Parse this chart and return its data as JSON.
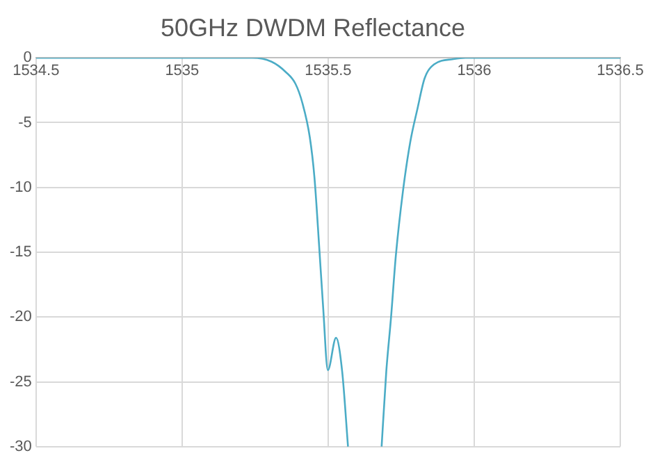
{
  "chart_data": {
    "type": "line",
    "title": "50GHz DWDM Reflectance",
    "x": [
      1534.5,
      1535.0,
      1535.24,
      1535.306,
      1535.355,
      1535.388,
      1535.412,
      1535.437,
      1535.453,
      1535.47,
      1535.483,
      1535.499,
      1535.527,
      1535.548,
      1535.568,
      1535.62,
      1535.683,
      1535.699,
      1535.715,
      1535.732,
      1535.756,
      1535.781,
      1535.806,
      1535.83,
      1535.863,
      1535.929,
      1535.97,
      1536.5
    ],
    "values": [
      0,
      0,
      0,
      -0.3,
      -1.1,
      -2.0,
      -3.5,
      -6.1,
      -9.2,
      -14.8,
      -19.3,
      -24.1,
      -21.6,
      -24.2,
      -30,
      null,
      -30,
      -24.2,
      -20.1,
      -15.2,
      -10.3,
      -6.5,
      -3.9,
      -1.6,
      -0.5,
      -0.1,
      0,
      0
    ],
    "color": "#4bacc6",
    "marker": "none",
    "xlim": [
      1534.5,
      1536.5
    ],
    "xticks": [
      1534.5,
      1535,
      1535.5,
      1536,
      1536.5
    ],
    "ylim": [
      -30,
      0
    ],
    "yticks": [
      -30,
      -25,
      -20,
      -15,
      -10,
      -5,
      0
    ],
    "grid": true
  }
}
